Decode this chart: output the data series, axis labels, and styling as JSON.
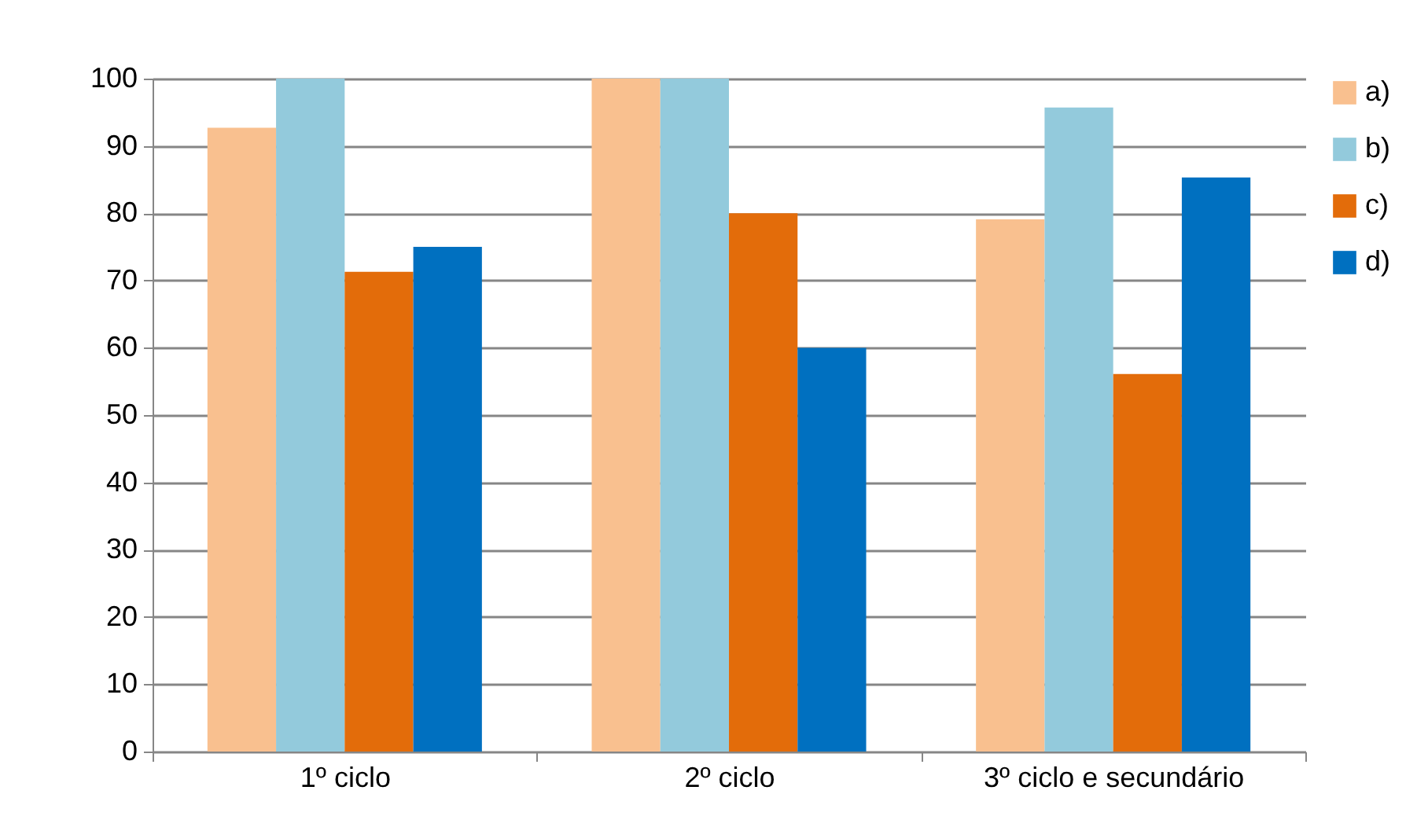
{
  "chart_data": {
    "type": "bar",
    "categories": [
      "1º ciclo",
      "2º ciclo",
      "3º ciclo e secundário"
    ],
    "series": [
      {
        "name": "a)",
        "color": "#f9c08f",
        "values": [
          92.7,
          100,
          79.1
        ]
      },
      {
        "name": "b)",
        "color": "#93cadc",
        "values": [
          100,
          100,
          95.7
        ]
      },
      {
        "name": "c)",
        "color": "#e36c0a",
        "values": [
          71.3,
          80,
          56.1
        ]
      },
      {
        "name": "d)",
        "color": "#0070c0",
        "values": [
          75,
          60,
          85.3
        ]
      }
    ],
    "ylim": [
      0,
      100
    ],
    "yticks": [
      0,
      10,
      20,
      30,
      40,
      50,
      60,
      70,
      80,
      90,
      100
    ],
    "grid": "y",
    "legend": "right"
  }
}
